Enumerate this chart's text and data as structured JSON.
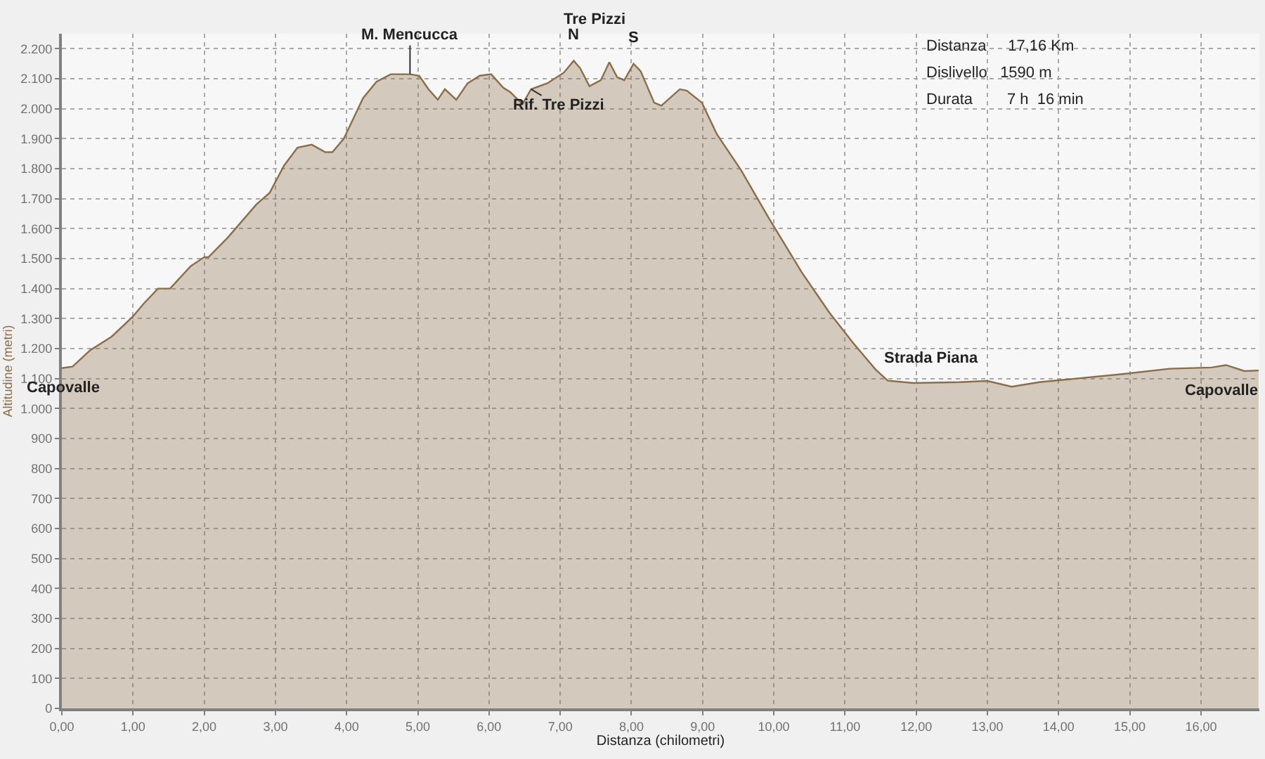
{
  "chart_data": {
    "type": "area",
    "xlabel": "Distanza (chilometri)",
    "ylabel": "Altitudine (metri)",
    "x": [
      0.0,
      0.15,
      0.4,
      0.7,
      0.99,
      1.15,
      1.35,
      1.52,
      1.81,
      2.0,
      2.06,
      2.33,
      2.73,
      2.92,
      3.12,
      3.31,
      3.51,
      3.7,
      3.8,
      3.96,
      4.23,
      4.42,
      4.62,
      4.89,
      5.02,
      5.15,
      5.28,
      5.38,
      5.54,
      5.7,
      5.87,
      6.03,
      6.2,
      6.3,
      6.47,
      6.59,
      6.82,
      7.05,
      7.19,
      7.28,
      7.41,
      7.57,
      7.69,
      7.8,
      7.9,
      8.03,
      8.13,
      8.32,
      8.42,
      8.68,
      8.78,
      8.99,
      9.2,
      9.54,
      9.93,
      10.39,
      10.78,
      11.11,
      11.43,
      11.6,
      11.96,
      12.61,
      13.0,
      13.34,
      13.73,
      14.25,
      14.9,
      15.56,
      16.15,
      16.35,
      16.61,
      16.81
    ],
    "series": [
      {
        "color": "#8b6d4a",
        "values": [
          1135,
          1140,
          1195,
          1240,
          1305,
          1350,
          1400,
          1400,
          1475,
          1505,
          1505,
          1570,
          1680,
          1720,
          1810,
          1870,
          1880,
          1855,
          1855,
          1900,
          2035,
          2090,
          2115,
          2115,
          2110,
          2065,
          2030,
          2065,
          2030,
          2085,
          2110,
          2115,
          2070,
          2055,
          2015,
          2065,
          2085,
          2120,
          2160,
          2135,
          2075,
          2095,
          2155,
          2105,
          2095,
          2150,
          2125,
          2020,
          2010,
          2065,
          2060,
          2020,
          1915,
          1795,
          1635,
          1455,
          1320,
          1220,
          1130,
          1093,
          1085,
          1088,
          1092,
          1073,
          1088,
          1100,
          1115,
          1133,
          1137,
          1145,
          1125,
          1127
        ]
      }
    ],
    "xlim": [
      0,
      16.82
    ],
    "ylim": [
      0,
      2250
    ],
    "xticks": [
      {
        "value": 0,
        "label": "0,00"
      },
      {
        "value": 1,
        "label": "1,00"
      },
      {
        "value": 2,
        "label": "2,00"
      },
      {
        "value": 3,
        "label": "3,00"
      },
      {
        "value": 4,
        "label": "4,00"
      },
      {
        "value": 5,
        "label": "5,00"
      },
      {
        "value": 6,
        "label": "6,00"
      },
      {
        "value": 7,
        "label": "7,00"
      },
      {
        "value": 8,
        "label": "8,00"
      },
      {
        "value": 9,
        "label": "9,00"
      },
      {
        "value": 10,
        "label": "10,00"
      },
      {
        "value": 11,
        "label": "11,00"
      },
      {
        "value": 12,
        "label": "12,00"
      },
      {
        "value": 13,
        "label": "13,00"
      },
      {
        "value": 14,
        "label": "14,00"
      },
      {
        "value": 15,
        "label": "15,00"
      },
      {
        "value": 16,
        "label": "16,00"
      }
    ],
    "yticks": [
      0,
      100,
      200,
      300,
      400,
      500,
      600,
      700,
      800,
      900,
      {
        "value": 1000,
        "label": "1.000"
      },
      {
        "value": 1100,
        "label": "1.100"
      },
      {
        "value": 1200,
        "label": "1.200"
      },
      {
        "value": 1300,
        "label": "1.300"
      },
      {
        "value": 1400,
        "label": "1.400"
      },
      {
        "value": 1500,
        "label": "1.500"
      },
      {
        "value": 1600,
        "label": "1.600"
      },
      {
        "value": 1700,
        "label": "1.700"
      },
      {
        "value": 1800,
        "label": "1.800"
      },
      {
        "value": 1900,
        "label": "1.900"
      },
      {
        "value": 2000,
        "label": "2.000"
      },
      {
        "value": 2100,
        "label": "2.100"
      },
      {
        "value": 2200,
        "label": "2.200"
      }
    ],
    "grid": true,
    "line_style": "solid",
    "annotations": [
      {
        "text": "M. Mencucca",
        "x": 4.89,
        "y": 2115
      },
      {
        "text": "N",
        "x": 7.19,
        "y": 2160
      },
      {
        "text": "S",
        "x": 8.03,
        "y": 2150
      },
      "Tre Pizzi",
      {
        "text": "Rif. Tre Pizzi",
        "x": 6.59,
        "y": 2065
      },
      {
        "text": "Capovalle",
        "x": 0.0,
        "y": 1135
      },
      {
        "text": "Strada Piana",
        "x": 13.0,
        "y": 1092
      },
      {
        "text": "Capovalle",
        "x": 16.81,
        "y": 1127
      },
      "Distanza     17,16 Km",
      "Dislivello   1590 m",
      "Durata        7 h  16 min"
    ]
  }
}
